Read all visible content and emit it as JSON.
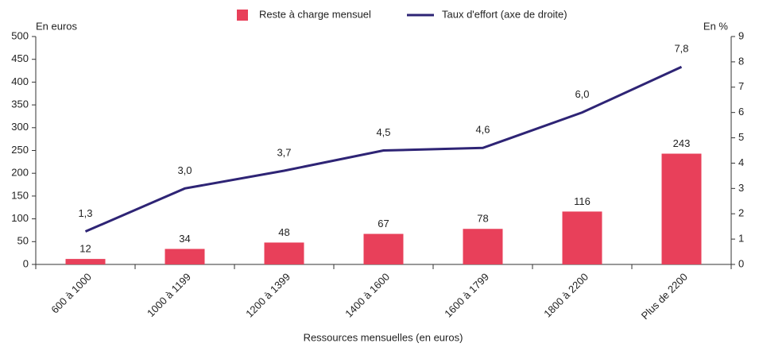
{
  "chart_data": {
    "type": "bar_line",
    "y_label": "En euros",
    "y2_label": "En %",
    "x_label": "Ressources mensuelles (en euros)",
    "categories": [
      "600 à 1000",
      "1000 à 1199",
      "1200 à 1399",
      "1400 à 1600",
      "1600 à 1799",
      "1800 à 2200",
      "Plus de 2200"
    ],
    "series": [
      {
        "name": "Reste à charge mensuel",
        "type": "bar",
        "color": "#e8405a",
        "values": [
          12,
          34,
          48,
          67,
          78,
          116,
          243
        ]
      },
      {
        "name": "Taux d'effort (axe de droite)",
        "type": "line",
        "axis": "y2",
        "color": "#2e2475",
        "values": [
          1.3,
          3.0,
          3.7,
          4.5,
          4.6,
          6.0,
          7.8
        ],
        "value_labels": [
          "1,3",
          "3,0",
          "3,7",
          "4,5",
          "4,6",
          "6,0",
          "7,8"
        ]
      }
    ],
    "ylim": [
      0,
      500
    ],
    "yticks": [
      0,
      50,
      100,
      150,
      200,
      250,
      300,
      350,
      400,
      450,
      500
    ],
    "y2lim": [
      0,
      9
    ],
    "y2ticks": [
      0,
      1,
      2,
      3,
      4,
      5,
      6,
      7,
      8,
      9
    ],
    "legend": "top"
  }
}
